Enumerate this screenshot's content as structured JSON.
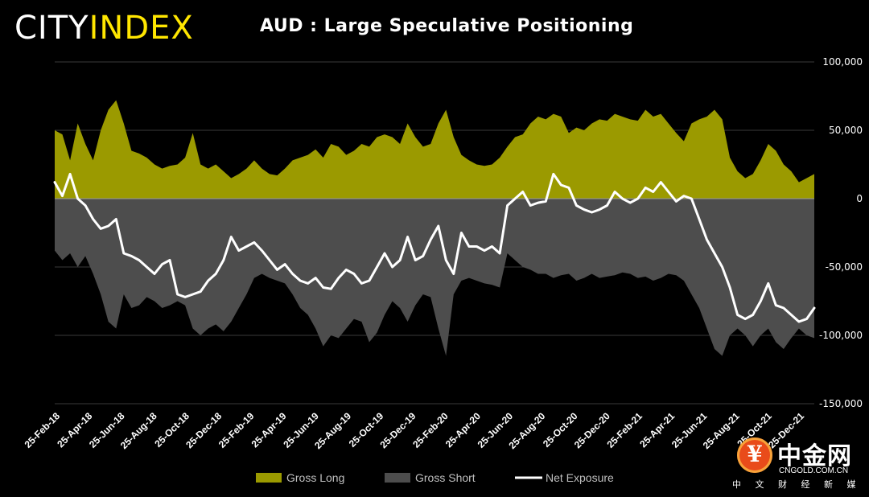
{
  "header": {
    "logo_city": "CITY",
    "logo_index": "INDEX",
    "title": "AUD : Large Speculative Positioning"
  },
  "watermark": {
    "name": "中金网",
    "domain": "CNGOLD.COM.CN",
    "subtitle": "中 文 财 经 新 媒 体",
    "icon": "yen-coin-icon"
  },
  "colors": {
    "background": "#000000",
    "gross_long": "#9b9a00",
    "gross_short": "#4d4d4d",
    "net_exposure": "#ffffff",
    "gridline": "#3a3a3a",
    "logo_accent": "#ffe600"
  },
  "chart_data": {
    "type": "area",
    "title": "AUD : Large Speculative Positioning",
    "xlabel": "",
    "ylabel": "",
    "ylim": [
      -150000,
      100000
    ],
    "y_ticks": [
      100000,
      50000,
      0,
      -50000,
      -100000,
      -150000
    ],
    "y_tick_labels": [
      "100,000",
      "50,000",
      "0",
      "-50,000",
      "-100,000",
      "-150,000"
    ],
    "y_axis_side": "right",
    "grid": true,
    "legend_position": "bottom",
    "x_tick_labels": [
      "25-Feb-18",
      "25-Apr-18",
      "25-Jun-18",
      "25-Aug-18",
      "25-Oct-18",
      "25-Dec-18",
      "25-Feb-19",
      "25-Apr-19",
      "25-Jun-19",
      "25-Aug-19",
      "25-Oct-19",
      "25-Dec-19",
      "25-Feb-20",
      "25-Apr-20",
      "25-Jun-20",
      "25-Aug-20",
      "25-Oct-20",
      "25-Dec-20",
      "25-Feb-21",
      "25-Apr-21",
      "25-Jun-21",
      "25-Aug-21",
      "25-Oct-21",
      "25-Dec-21"
    ],
    "series": [
      {
        "name": "Gross Long",
        "style": "area",
        "color": "#9b9a00",
        "values": [
          50000,
          47000,
          28000,
          55000,
          40000,
          28000,
          50000,
          65000,
          72000,
          55000,
          35000,
          33000,
          30000,
          25000,
          22000,
          24000,
          25000,
          30000,
          48000,
          25000,
          22000,
          25000,
          20000,
          15000,
          18000,
          22000,
          28000,
          22000,
          18000,
          17000,
          22000,
          28000,
          30000,
          32000,
          36000,
          30000,
          40000,
          38000,
          32000,
          35000,
          40000,
          38000,
          45000,
          47000,
          45000,
          40000,
          55000,
          45000,
          38000,
          40000,
          55000,
          65000,
          45000,
          32000,
          28000,
          25000,
          24000,
          25000,
          30000,
          38000,
          45000,
          47000,
          55000,
          60000,
          58000,
          62000,
          60000,
          48000,
          52000,
          50000,
          55000,
          58000,
          57000,
          62000,
          60000,
          58000,
          57000,
          65000,
          60000,
          62000,
          55000,
          48000,
          42000,
          55000,
          58000,
          60000,
          65000,
          58000,
          30000,
          20000,
          15000,
          18000,
          28000,
          40000,
          35000,
          25000,
          20000,
          12000,
          15000,
          18000
        ],
        "x_index_range": [
          0,
          99
        ]
      },
      {
        "name": "Gross Short",
        "style": "area",
        "color": "#4d4d4d",
        "values": [
          -38000,
          -45000,
          -40000,
          -50000,
          -42000,
          -55000,
          -70000,
          -90000,
          -95000,
          -70000,
          -80000,
          -78000,
          -72000,
          -75000,
          -80000,
          -78000,
          -75000,
          -78000,
          -95000,
          -100000,
          -95000,
          -92000,
          -97000,
          -90000,
          -80000,
          -70000,
          -58000,
          -55000,
          -58000,
          -60000,
          -62000,
          -70000,
          -80000,
          -85000,
          -95000,
          -108000,
          -100000,
          -102000,
          -95000,
          -88000,
          -90000,
          -105000,
          -98000,
          -85000,
          -75000,
          -80000,
          -90000,
          -78000,
          -70000,
          -72000,
          -95000,
          -115000,
          -70000,
          -60000,
          -58000,
          -60000,
          -62000,
          -63000,
          -65000,
          -40000,
          -45000,
          -50000,
          -52000,
          -55000,
          -55000,
          -58000,
          -56000,
          -55000,
          -60000,
          -58000,
          -55000,
          -58000,
          -57000,
          -56000,
          -54000,
          -55000,
          -58000,
          -57000,
          -60000,
          -58000,
          -55000,
          -56000,
          -60000,
          -70000,
          -80000,
          -95000,
          -110000,
          -115000,
          -100000,
          -95000,
          -100000,
          -108000,
          -100000,
          -95000,
          -105000,
          -110000,
          -102000,
          -95000,
          -100000,
          -102000
        ],
        "x_index_range": [
          0,
          99
        ]
      },
      {
        "name": "Net Exposure",
        "style": "line",
        "color": "#ffffff",
        "values": [
          12000,
          2000,
          18000,
          0,
          -5000,
          -15000,
          -22000,
          -20000,
          -15000,
          -40000,
          -42000,
          -45000,
          -50000,
          -55000,
          -48000,
          -45000,
          -70000,
          -72000,
          -70000,
          -68000,
          -60000,
          -55000,
          -45000,
          -28000,
          -38000,
          -35000,
          -32000,
          -38000,
          -45000,
          -52000,
          -48000,
          -55000,
          -60000,
          -62000,
          -58000,
          -65000,
          -66000,
          -58000,
          -52000,
          -55000,
          -62000,
          -60000,
          -50000,
          -40000,
          -50000,
          -45000,
          -28000,
          -45000,
          -42000,
          -30000,
          -20000,
          -45000,
          -55000,
          -25000,
          -35000,
          -35000,
          -38000,
          -35000,
          -40000,
          -5000,
          0,
          5000,
          -5000,
          -3000,
          -2000,
          18000,
          10000,
          8000,
          -5000,
          -8000,
          -10000,
          -8000,
          -5000,
          5000,
          0,
          -3000,
          0,
          8000,
          5000,
          12000,
          5000,
          -2000,
          2000,
          0,
          -15000,
          -30000,
          -40000,
          -50000,
          -65000,
          -85000,
          -88000,
          -85000,
          -75000,
          -62000,
          -78000,
          -80000,
          -85000,
          -90000,
          -88000,
          -80000
        ],
        "x_index_range": [
          0,
          99
        ]
      }
    ]
  },
  "legend": {
    "items": [
      {
        "label": "Gross Long",
        "swatch": "box",
        "color": "#9b9a00"
      },
      {
        "label": "Gross Short",
        "swatch": "box",
        "color": "#4d4d4d"
      },
      {
        "label": "Net Exposure",
        "swatch": "line",
        "color": "#ffffff"
      }
    ]
  }
}
